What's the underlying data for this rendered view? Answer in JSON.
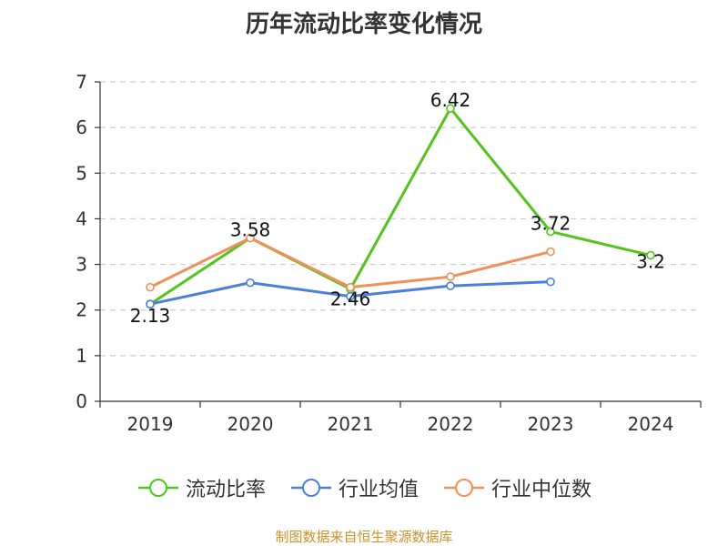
{
  "chart_data": {
    "type": "line",
    "title": "历年流动比率变化情况",
    "categories": [
      "2019",
      "2020",
      "2021",
      "2022",
      "2023",
      "2024"
    ],
    "ylim": [
      0,
      7
    ],
    "yticks": [
      "0",
      "1",
      "2",
      "3",
      "4",
      "5",
      "6",
      "7"
    ],
    "grid": true,
    "legend_position": "bottom",
    "series": [
      {
        "name": "流动比率",
        "color": "#52c41a",
        "values": [
          2.13,
          3.58,
          2.46,
          6.42,
          3.72,
          3.2
        ],
        "labels": [
          "2.13",
          "3.58",
          "2.46",
          "6.42",
          "3.72",
          "3.2"
        ]
      },
      {
        "name": "行业均值",
        "color": "#4a7fdc",
        "values": [
          2.13,
          2.6,
          2.3,
          2.53,
          2.62,
          null
        ]
      },
      {
        "name": "行业中位数",
        "color": "#f0905a",
        "values": [
          2.5,
          3.58,
          2.5,
          2.73,
          3.28,
          null
        ]
      }
    ]
  },
  "source": "制图数据来自恒生聚源数据库"
}
